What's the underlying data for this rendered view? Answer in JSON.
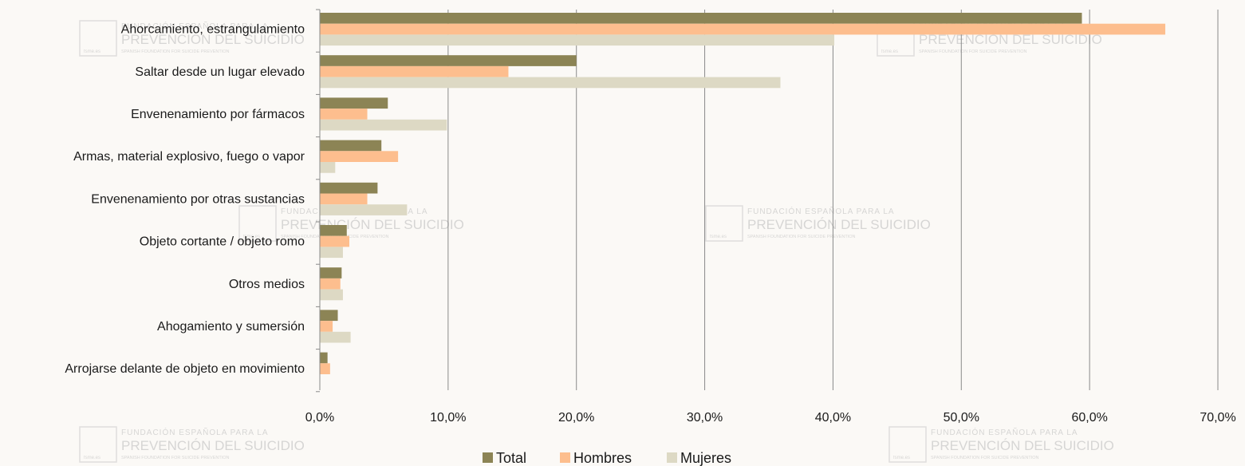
{
  "chart_data": {
    "type": "bar",
    "orientation": "horizontal",
    "categories": [
      "Ahorcamiento, estrangulamiento",
      "Saltar desde un lugar elevado",
      "Envenenamiento por fármacos",
      "Armas, material explosivo, fuego o vapor",
      "Envenenamiento por otras sustancias",
      "Objeto cortante / objeto romo",
      "Otros medios",
      "Ahogamiento y sumersión",
      "Arrojarse delante de objeto en movimiento"
    ],
    "series": [
      {
        "name": "Total",
        "color": "#8C8455",
        "values": [
          59.4,
          20.0,
          5.3,
          4.8,
          4.5,
          2.1,
          1.7,
          1.4,
          0.6
        ]
      },
      {
        "name": "Hombres",
        "color": "#FDBE8E",
        "values": [
          65.9,
          14.7,
          3.7,
          6.1,
          3.7,
          2.3,
          1.6,
          1.0,
          0.8
        ]
      },
      {
        "name": "Mujeres",
        "color": "#DDD9C4",
        "values": [
          40.1,
          35.9,
          9.9,
          1.2,
          6.8,
          1.8,
          1.8,
          2.4,
          0.0
        ]
      }
    ],
    "xlim": [
      0,
      70
    ],
    "ticks": [
      0,
      10,
      20,
      30,
      40,
      50,
      60,
      70
    ],
    "tick_labels": [
      "0,0%",
      "10,0%",
      "20,0%",
      "30,0%",
      "40,0%",
      "50,0%",
      "60,0%",
      "70,0%"
    ],
    "grid": true,
    "legend_position": "bottom"
  },
  "watermark": {
    "line1": "FUNDACIÓN ESPAÑOLA PARA LA",
    "line2": "PREVENCIÓN DEL SUICIDIO",
    "line3": "SPANISH FOUNDATION FOR SUICIDE PREVENTION",
    "logo_text": "fsme.es"
  }
}
